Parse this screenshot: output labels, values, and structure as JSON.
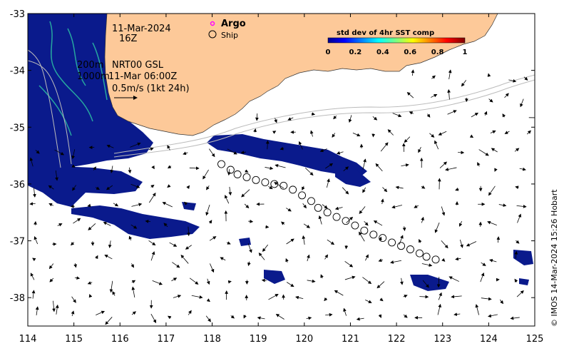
{
  "map": {
    "lon_range": [
      114,
      125
    ],
    "lat_range": [
      -38.5,
      -33
    ],
    "x_ticks": [
      "114",
      "115",
      "116",
      "117",
      "118",
      "119",
      "120",
      "121",
      "122",
      "123",
      "124",
      "125"
    ],
    "y_ticks": [
      "-33",
      "-34",
      "-35",
      "-36",
      "-37",
      "-38"
    ],
    "land_color": "#fdc999",
    "ocean_color": "#ffffff",
    "sst_color": "#0a1a8c"
  },
  "annotations": {
    "date": "11-Mar-2024",
    "time": "16Z",
    "contour_200": "200m",
    "contour_1000": "1000m",
    "product": "NRT00 GSL",
    "product_time": "11-Mar 06:00Z",
    "scale": "0.5m/s (1kt 24h)"
  },
  "legend": {
    "argo_label": "Argo",
    "argo_color": "#ff00ff",
    "ship_label": "Ship"
  },
  "colorbar": {
    "title": "std dev of 4hr SST comp",
    "ticks": [
      "0",
      "0.2",
      "0.4",
      "0.6",
      "0.8",
      "1"
    ]
  },
  "credit": "© IMOS 14-Mar-2024 15:26 Hobart",
  "ship_track": [
    {
      "lon": 118.2,
      "lat": -35.65
    },
    {
      "lon": 118.4,
      "lat": -35.75
    },
    {
      "lon": 118.55,
      "lat": -35.83
    },
    {
      "lon": 118.75,
      "lat": -35.88
    },
    {
      "lon": 118.95,
      "lat": -35.93
    },
    {
      "lon": 119.15,
      "lat": -35.97
    },
    {
      "lon": 119.35,
      "lat": -36.0
    },
    {
      "lon": 119.55,
      "lat": -36.03
    },
    {
      "lon": 119.75,
      "lat": -36.1
    },
    {
      "lon": 119.95,
      "lat": -36.2
    },
    {
      "lon": 120.15,
      "lat": -36.3
    },
    {
      "lon": 120.3,
      "lat": -36.42
    },
    {
      "lon": 120.5,
      "lat": -36.5
    },
    {
      "lon": 120.7,
      "lat": -36.58
    },
    {
      "lon": 120.9,
      "lat": -36.65
    },
    {
      "lon": 121.1,
      "lat": -36.73
    },
    {
      "lon": 121.3,
      "lat": -36.82
    },
    {
      "lon": 121.5,
      "lat": -36.89
    },
    {
      "lon": 121.7,
      "lat": -36.95
    },
    {
      "lon": 121.9,
      "lat": -37.03
    },
    {
      "lon": 122.1,
      "lat": -37.09
    },
    {
      "lon": 122.3,
      "lat": -37.15
    },
    {
      "lon": 122.5,
      "lat": -37.22
    },
    {
      "lon": 122.65,
      "lat": -37.28
    },
    {
      "lon": 122.85,
      "lat": -37.33
    }
  ]
}
